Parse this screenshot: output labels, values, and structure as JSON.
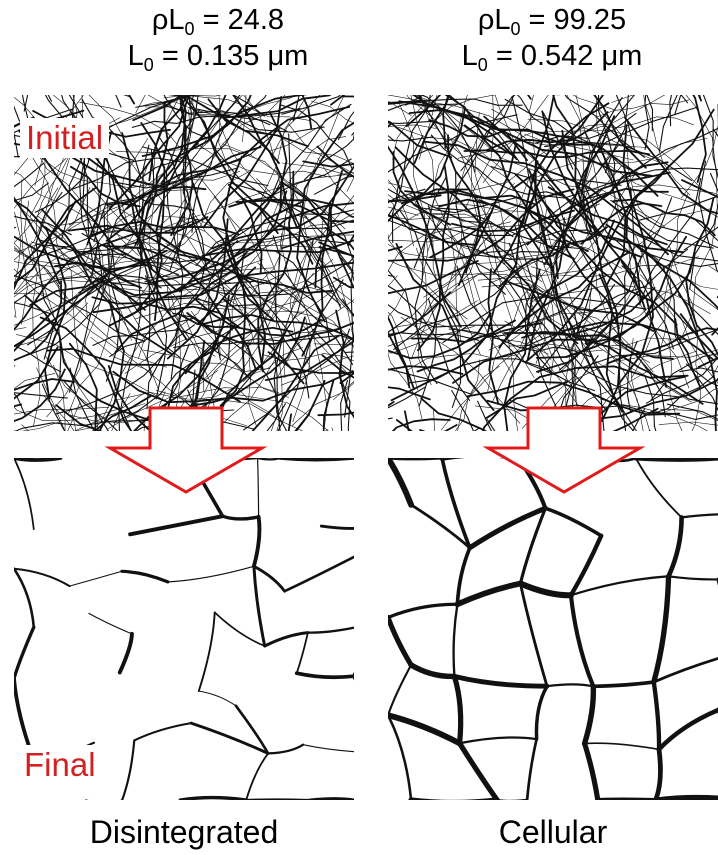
{
  "left": {
    "rho_symbol": "ρL",
    "rho_sub": "0",
    "rho_value": " = 24.8",
    "l_symbol": "L",
    "l_sub": "0",
    "l_value": " = 0.135 μm",
    "tag_initial": "Initial",
    "tag_final": "Final",
    "caption": "Disintegrated"
  },
  "right": {
    "rho_symbol": "ρL",
    "rho_sub": "0",
    "rho_value": " = 99.25",
    "l_symbol": "L",
    "l_sub": "0",
    "l_value": " = 0.542 μm",
    "caption": "Cellular"
  },
  "colors": {
    "label_red": "#d32020",
    "arrow_outline": "#e11b1b",
    "fiber": "#111111"
  },
  "icons": {
    "arrow": "down-arrow-icon"
  }
}
